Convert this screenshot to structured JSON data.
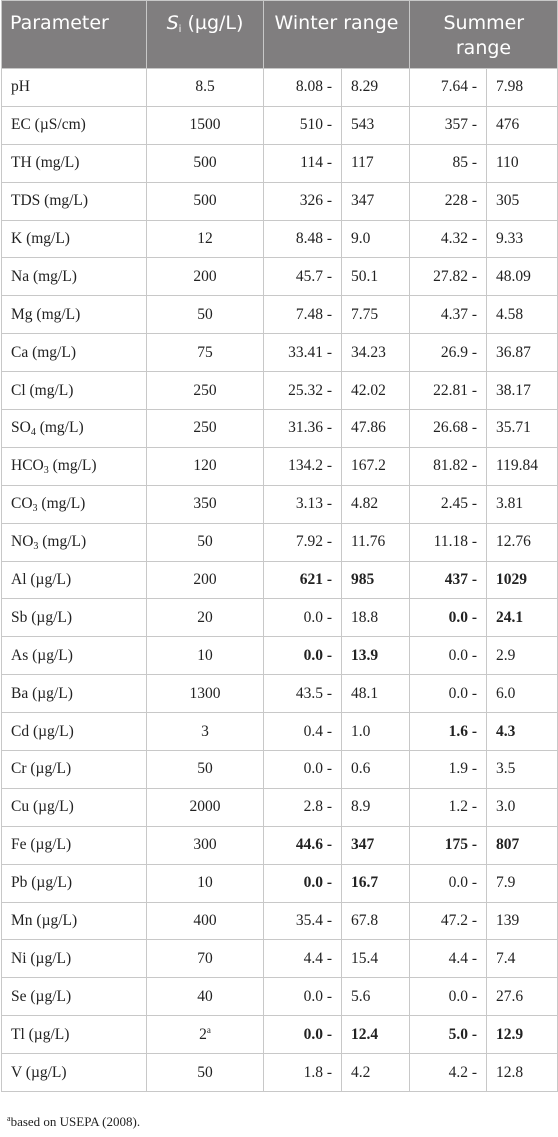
{
  "headers": {
    "parameter": "Parameter",
    "si_symbol": "S",
    "si_subscript": "i",
    "si_unit": " (µg/L)",
    "winter": "Winter range",
    "summer": "Summer range"
  },
  "rows": [
    {
      "name": "pH",
      "si": "8.5",
      "w_lo": "8.08 -",
      "w_hi": "8.29",
      "s_lo": "7.64 -",
      "s_hi": "7.98"
    },
    {
      "name": "EC (µS/cm)",
      "si": "1500",
      "w_lo": "510 -",
      "w_hi": "543",
      "s_lo": "357 -",
      "s_hi": "476"
    },
    {
      "name": "TH (mg/L)",
      "si": "500",
      "w_lo": "114 -",
      "w_hi": "117",
      "s_lo": "85 -",
      "s_hi": "110"
    },
    {
      "name": "TDS (mg/L)",
      "si": "500",
      "w_lo": "326 -",
      "w_hi": "347",
      "s_lo": "228 -",
      "s_hi": "305"
    },
    {
      "name": "K (mg/L)",
      "si": "12",
      "w_lo": "8.48 -",
      "w_hi": "9.0",
      "s_lo": "4.32 -",
      "s_hi": "9.33"
    },
    {
      "name": "Na (mg/L)",
      "si": "200",
      "w_lo": "45.7 -",
      "w_hi": "50.1",
      "s_lo": "27.82 -",
      "s_hi": "48.09"
    },
    {
      "name": "Mg (mg/L)",
      "si": "50",
      "w_lo": "7.48 -",
      "w_hi": "7.75",
      "s_lo": "4.37 -",
      "s_hi": "4.58"
    },
    {
      "name": "Ca (mg/L)",
      "si": "75",
      "w_lo": "33.41 -",
      "w_hi": "34.23",
      "s_lo": "26.9 -",
      "s_hi": "36.87"
    },
    {
      "name": "Cl (mg/L)",
      "si": "250",
      "w_lo": "25.32 -",
      "w_hi": "42.02",
      "s_lo": "22.81 -",
      "s_hi": "38.17"
    },
    {
      "name_main": "SO",
      "name_sub": "4",
      "name_rest": " (mg/L)",
      "si": "250",
      "w_lo": "31.36 -",
      "w_hi": "47.86",
      "s_lo": "26.68 -",
      "s_hi": "35.71"
    },
    {
      "name_main": "HCO",
      "name_sub": "3",
      "name_rest": " (mg/L)",
      "si": "120",
      "w_lo": "134.2 -",
      "w_hi": "167.2",
      "s_lo": "81.82 -",
      "s_hi": "119.84"
    },
    {
      "name_main": "CO",
      "name_sub": "3",
      "name_rest": " (mg/L)",
      "si": "350",
      "w_lo": "3.13 -",
      "w_hi": "4.82",
      "s_lo": "2.45 -",
      "s_hi": "3.81"
    },
    {
      "name_main": "NO",
      "name_sub": "3",
      "name_rest": " (mg/L)",
      "si": "50",
      "w_lo": "7.92 -",
      "w_hi": "11.76",
      "s_lo": "11.18 -",
      "s_hi": "12.76"
    },
    {
      "name": "Al (µg/L)",
      "si": "200",
      "w_lo": "621 -",
      "w_hi": "985",
      "s_lo": "437 -",
      "s_hi": "1029"
    },
    {
      "name": "Sb (µg/L)",
      "si": "20",
      "w_lo": "0.0 -",
      "w_hi": "18.8",
      "s_lo": "0.0 -",
      "s_hi": "24.1"
    },
    {
      "name": "As (µg/L)",
      "si": "10",
      "w_lo": "0.0 -",
      "w_hi": "13.9",
      "s_lo": "0.0 -",
      "s_hi": "2.9"
    },
    {
      "name": "Ba (µg/L)",
      "si": "1300",
      "w_lo": "43.5 -",
      "w_hi": "48.1",
      "s_lo": "0.0 -",
      "s_hi": "6.0"
    },
    {
      "name": "Cd (µg/L)",
      "si": "3",
      "w_lo": "0.4 -",
      "w_hi": "1.0",
      "s_lo": "1.6 -",
      "s_hi": "4.3"
    },
    {
      "name": "Cr (µg/L)",
      "si": "50",
      "w_lo": "0.0 -",
      "w_hi": "0.6",
      "s_lo": "1.9 -",
      "s_hi": "3.5"
    },
    {
      "name": "Cu (µg/L)",
      "si": "2000",
      "w_lo": "2.8 -",
      "w_hi": "8.9",
      "s_lo": "1.2 -",
      "s_hi": "3.0"
    },
    {
      "name": "Fe (µg/L)",
      "si": "300",
      "w_lo": "44.6 -",
      "w_hi": "347",
      "s_lo": "175 -",
      "s_hi": "807"
    },
    {
      "name": "Pb (µg/L)",
      "si": "10",
      "w_lo": "0.0 -",
      "w_hi": "16.7",
      "s_lo": "0.0 -",
      "s_hi": "7.9"
    },
    {
      "name": "Mn (µg/L)",
      "si": "400",
      "w_lo": "35.4 -",
      "w_hi": "67.8",
      "s_lo": "47.2 -",
      "s_hi": "139"
    },
    {
      "name": "Ni (µg/L)",
      "si": "70",
      "w_lo": "4.4 -",
      "w_hi": "15.4",
      "s_lo": "4.4 -",
      "s_hi": "7.4"
    },
    {
      "name": "Se (µg/L)",
      "si": "40",
      "w_lo": "0.0 -",
      "w_hi": "5.6",
      "s_lo": "0.0 -",
      "s_hi": "27.6"
    },
    {
      "name": "Tl (µg/L)",
      "si": "2",
      "si_sup": "a",
      "w_lo": "0.0 -",
      "w_hi": "12.4",
      "s_lo": "5.0 -",
      "s_hi": "12.9"
    },
    {
      "name": "V (µg/L)",
      "si": "50",
      "w_lo": "1.8 -",
      "w_hi": "4.2",
      "s_lo": "4.2 -",
      "s_hi": "12.8"
    }
  ],
  "footnote": {
    "marker": "a",
    "text": "based on USEPA (2008)."
  }
}
